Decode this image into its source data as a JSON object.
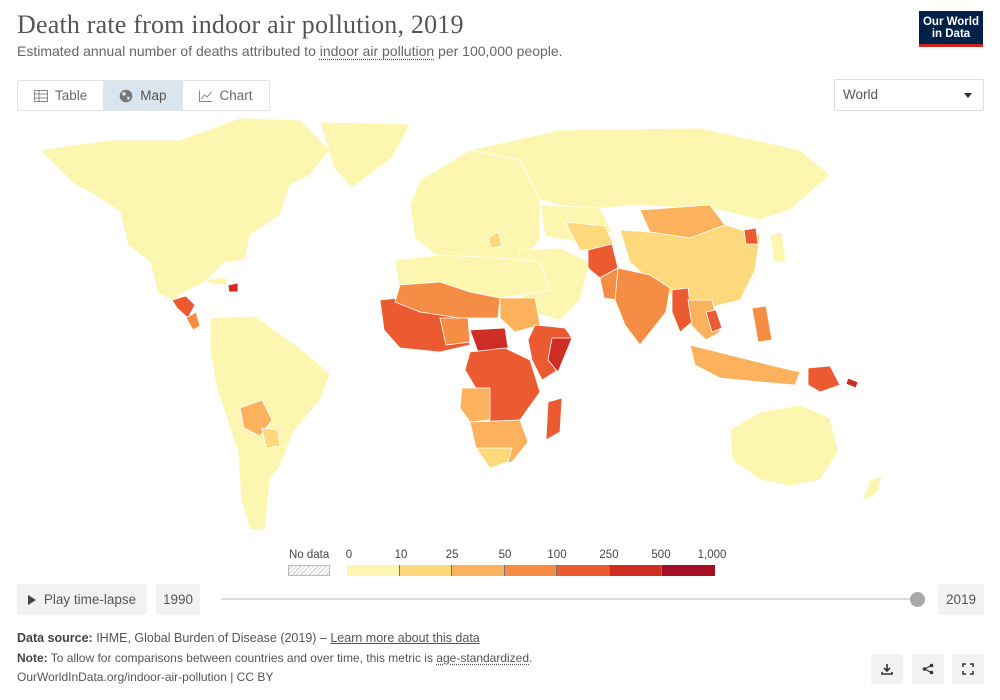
{
  "header": {
    "title": "Death rate from indoor air pollution, 2019",
    "subtitle_before": "Estimated annual number of deaths attributed to ",
    "subtitle_link": "indoor air pollution",
    "subtitle_after": " per 100,000 people.",
    "logo_line1": "Our World",
    "logo_line2": "in Data"
  },
  "tabs": [
    {
      "label": "Table",
      "icon": "table-icon"
    },
    {
      "label": "Map",
      "icon": "globe-icon",
      "active": true
    },
    {
      "label": "Chart",
      "icon": "line-chart-icon"
    }
  ],
  "region_select": {
    "value": "World"
  },
  "legend": {
    "no_data_label": "No data",
    "ticks": [
      "0",
      "10",
      "25",
      "50",
      "100",
      "250",
      "500",
      "1,000"
    ],
    "colors": [
      "#fdf6b1",
      "#fdd97c",
      "#fcb25d",
      "#f58d44",
      "#ec5a32",
      "#d02d25",
      "#a50f26"
    ],
    "no_data_pattern": "hatched-gray"
  },
  "timeline": {
    "play_label": "Play time-lapse",
    "start_year": "1990",
    "end_year": "2019",
    "position": 1.0
  },
  "footer": {
    "source_label": "Data source:",
    "source_text": " IHME, Global Burden of Disease (2019) – ",
    "source_link": "Learn more about this data",
    "note_label": "Note:",
    "note_text": " To allow for comparisons between countries and over time, this metric is ",
    "note_link": "age-standardized",
    "note_end": ".",
    "url": "OurWorldInData.org/indoor-air-pollution | CC BY"
  },
  "actions": [
    "download-icon",
    "share-icon",
    "fullscreen-icon"
  ],
  "map_colors": {
    "low": "#fdf6b1",
    "light": "#fdd97c",
    "mid": "#fcb25d",
    "orange": "#f58d44",
    "red": "#ec5a32",
    "dark": "#d02d25",
    "darkest": "#a50f26",
    "border": "#ffffff"
  }
}
